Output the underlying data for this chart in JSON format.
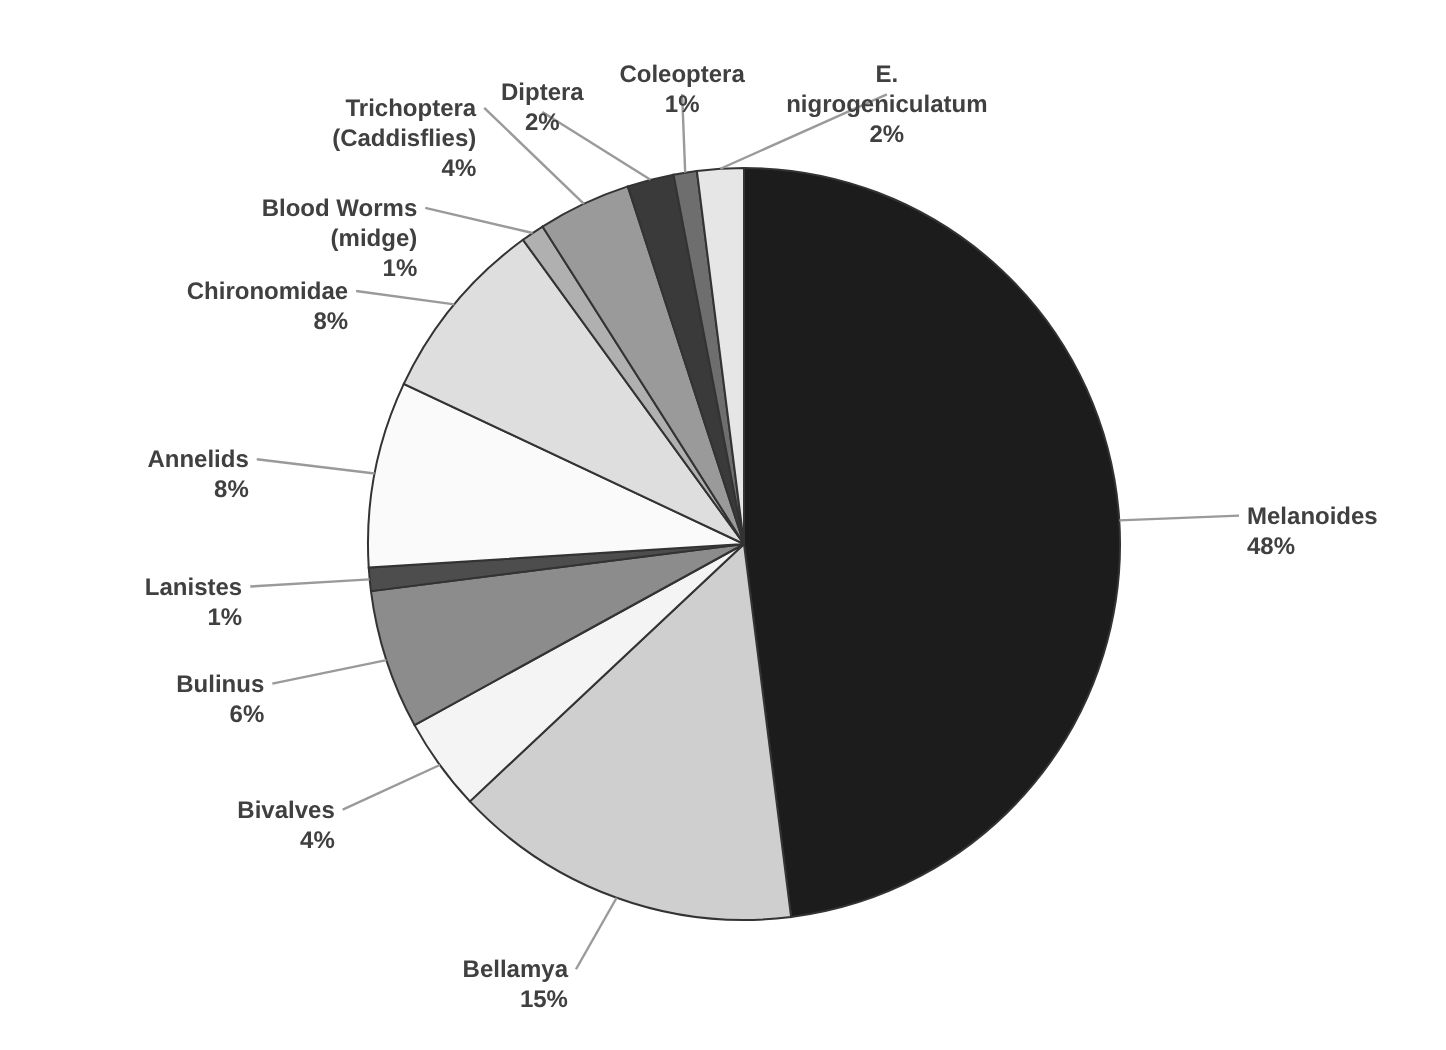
{
  "chart_data": {
    "type": "pie",
    "categories": [
      "Melanoides",
      "Bellamya",
      "Bivalves",
      "Bulinus",
      "Lanistes",
      "Annelids",
      "Chironomidae",
      "Blood Worms (midge)",
      "Trichoptera (Caddisflies)",
      "Diptera",
      "Coleoptera",
      "E. nigrogeniculatum"
    ],
    "values": [
      48,
      15,
      4,
      6,
      1,
      8,
      8,
      1,
      4,
      2,
      1,
      2
    ],
    "value_labels": [
      "48%",
      "15%",
      "4%",
      "6%",
      "1%",
      "8%",
      "8%",
      "1%",
      "4%",
      "2%",
      "1%",
      "2%"
    ],
    "colors": [
      "#1c1c1c",
      "#cfcfcf",
      "#f4f4f4",
      "#8c8c8c",
      "#4d4d4d",
      "#fafafa",
      "#dedede",
      "#b0b0b0",
      "#9a9a9a",
      "#3a3a3a",
      "#6e6e6e",
      "#e6e6e6"
    ]
  }
}
